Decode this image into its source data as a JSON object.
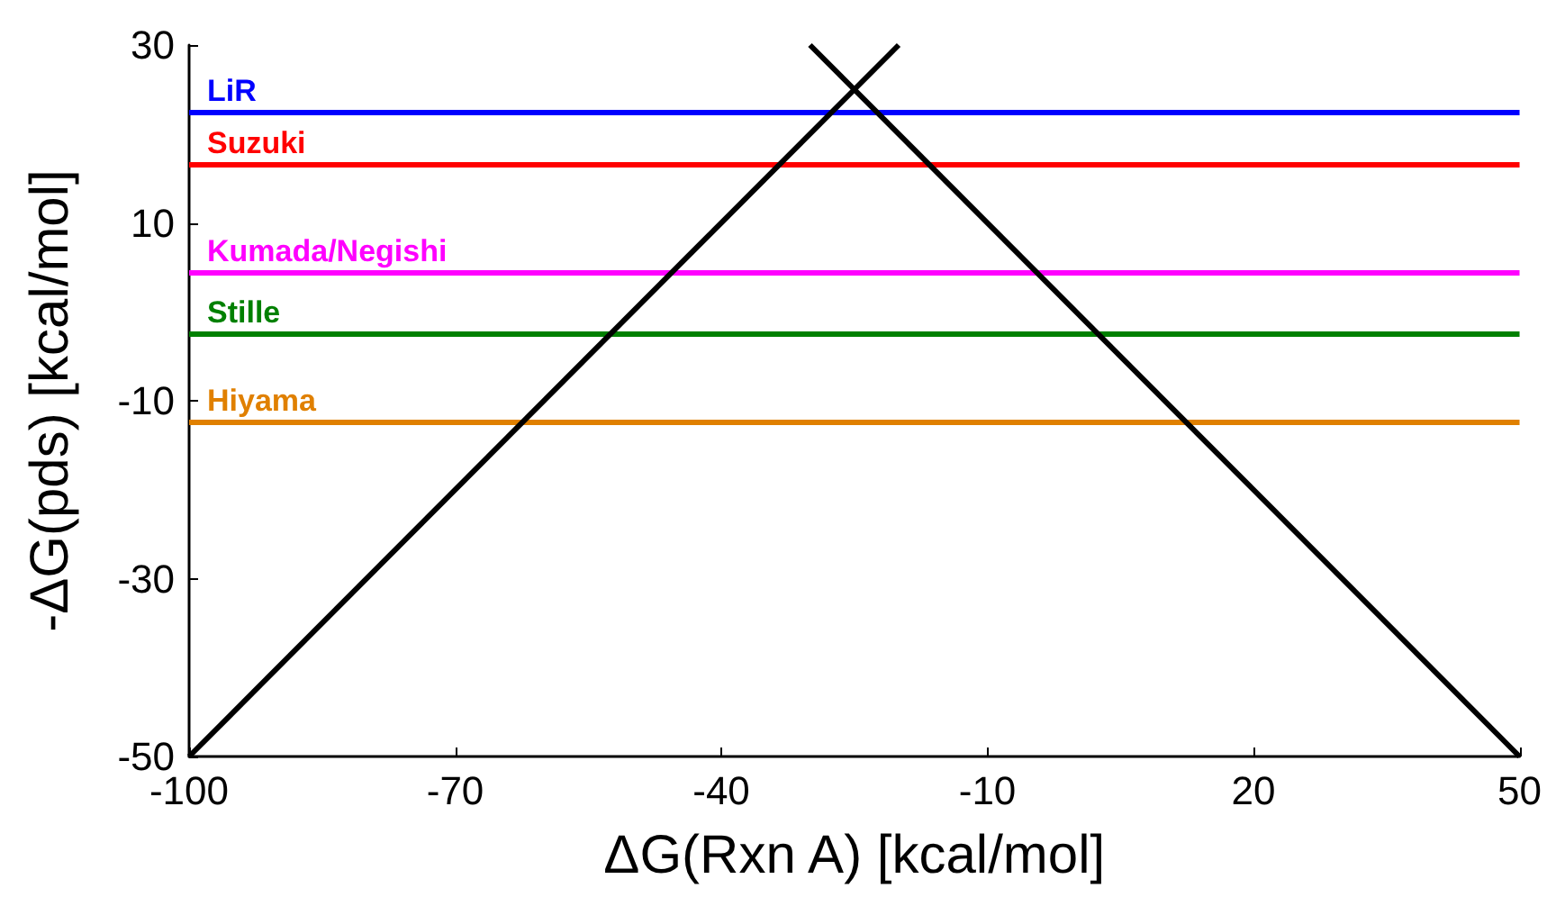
{
  "chart_data": {
    "type": "line",
    "xlabel": "ΔG(Rxn A) [kcal/mol]",
    "ylabel": "-ΔG(pds) [kcal/mol]",
    "xlim": [
      -100,
      50
    ],
    "xticks": [
      -100,
      -70,
      -40,
      -10,
      20,
      50
    ],
    "ylim": [
      -50,
      30
    ],
    "yticks": [
      -50,
      -30,
      -10,
      10,
      30
    ],
    "series": [
      {
        "color": "#000000",
        "x": [
          -100,
          -20
        ],
        "values": [
          -50,
          30
        ]
      },
      {
        "color": "#000000",
        "x": [
          -30,
          50
        ],
        "values": [
          30,
          -50
        ]
      }
    ],
    "ref_lines": [
      {
        "axis": "y",
        "value": 22.5,
        "label": "LiR",
        "color": "#0000ff"
      },
      {
        "axis": "y",
        "value": 16.6,
        "label": "Suzuki",
        "color": "#ff0000"
      },
      {
        "axis": "y",
        "value": 4.5,
        "label": "Kumada/Negishi",
        "color": "#ff00ff"
      },
      {
        "axis": "y",
        "value": -2.4,
        "label": "Stille",
        "color": "#008000"
      },
      {
        "axis": "y",
        "value": -12.3,
        "label": "Hiyama",
        "color": "#e08000"
      }
    ],
    "grid": false,
    "marker": "none",
    "line_style": "solid"
  }
}
